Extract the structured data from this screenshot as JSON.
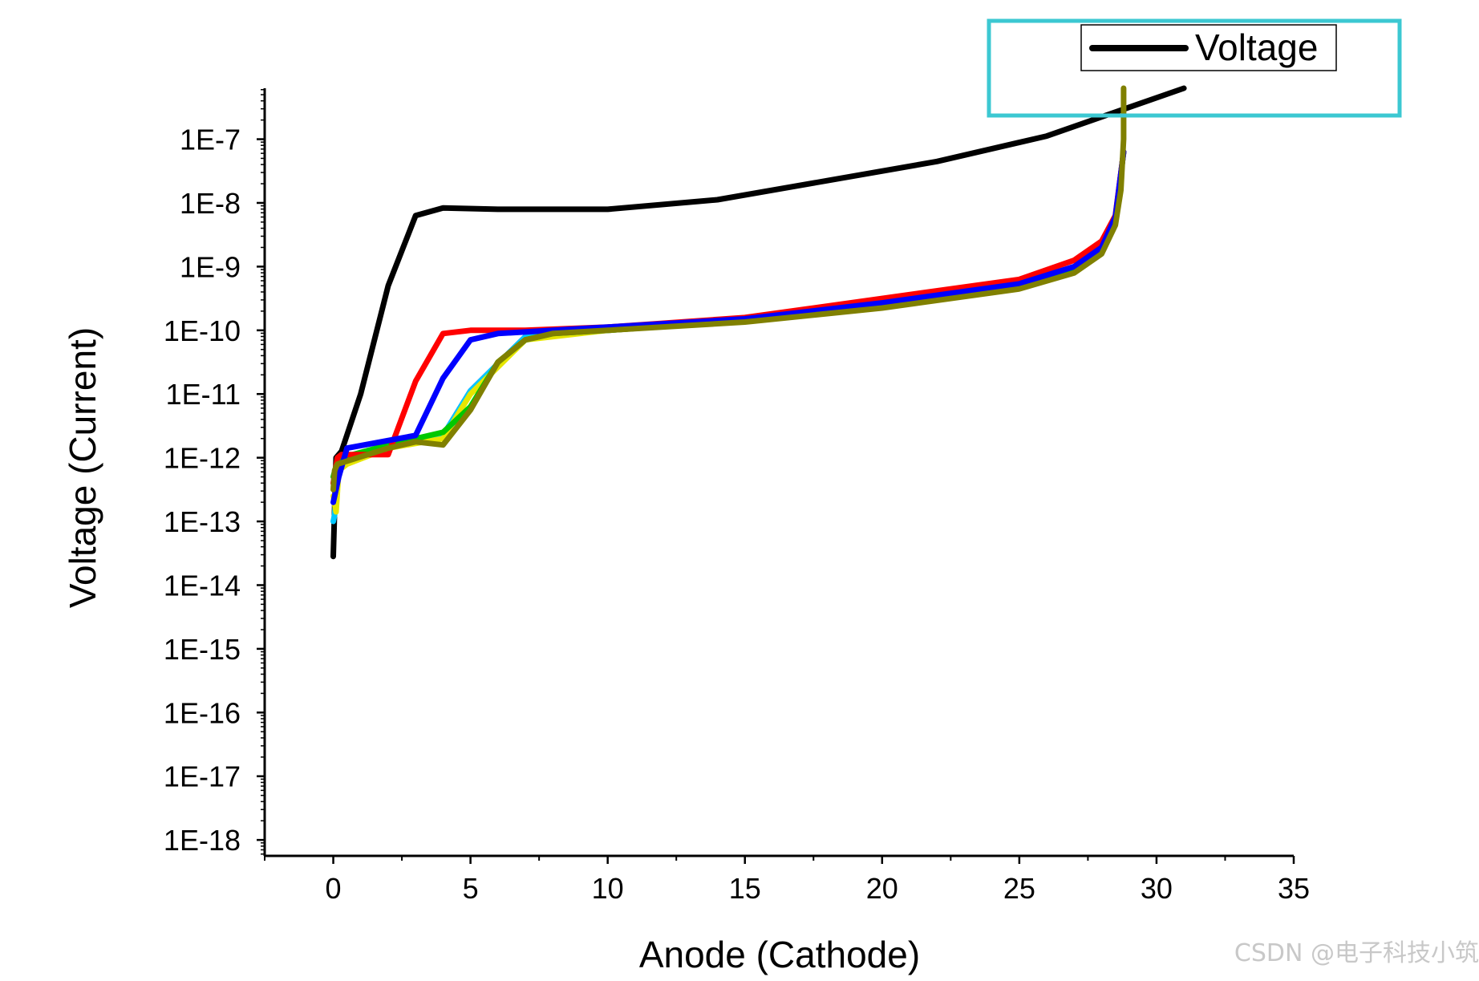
{
  "chart_data": {
    "type": "line",
    "title": "",
    "xlabel": "Anode (Cathode)",
    "ylabel": "Voltage (Current)",
    "xlim": [
      -2.5,
      35
    ],
    "ylim_log10": [
      -18.25,
      -6.2
    ],
    "yscale": "log",
    "xticks": [
      0,
      5,
      10,
      15,
      20,
      25,
      30,
      35
    ],
    "xtick_labels": [
      "0",
      "5",
      "10",
      "15",
      "20",
      "25",
      "30",
      "35"
    ],
    "yticks_log10": [
      -18,
      -17,
      -16,
      -15,
      -14,
      -13,
      -12,
      -11,
      -10,
      -9,
      -8,
      -7
    ],
    "ytick_labels": [
      "1E-18",
      "1E-17",
      "1E-16",
      "1E-15",
      "1E-14",
      "1E-13",
      "1E-12",
      "1E-11",
      "1E-10",
      "1E-9",
      "1E-8",
      "1E-7"
    ],
    "grid": false,
    "legend": {
      "position": "top-right",
      "entries": [
        "Voltage"
      ],
      "highlight_color": "#3cc8d2"
    },
    "series": [
      {
        "name": "Voltage",
        "color": "#000000",
        "x": [
          0,
          0.1,
          0.3,
          1,
          2,
          3,
          4,
          6,
          10,
          14,
          18,
          22,
          26,
          29,
          31
        ],
        "y_log10": [
          -13.55,
          -12.0,
          -11.9,
          -11.0,
          -9.3,
          -8.2,
          -8.08,
          -8.1,
          -8.1,
          -7.95,
          -7.65,
          -7.35,
          -6.95,
          -6.5,
          -6.2
        ]
      },
      {
        "name": "",
        "color": "#ff00ff",
        "x": [
          0,
          0.15,
          0.4,
          2,
          4,
          5,
          7,
          10,
          15,
          20,
          25,
          27,
          28,
          28.5,
          28.8
        ],
        "y_log10": [
          -12.4,
          -12.1,
          -12.05,
          -11.8,
          -11.65,
          -10.95,
          -10.1,
          -10.0,
          -9.85,
          -9.6,
          -9.3,
          -9.05,
          -8.75,
          -8.25,
          -7.2
        ]
      },
      {
        "name": "",
        "color": "#00c8ff",
        "x": [
          0,
          0.05,
          0.15,
          0.4,
          2,
          4,
          5,
          7,
          10,
          15,
          20,
          25,
          27,
          28,
          28.5,
          28.8
        ],
        "y_log10": [
          -13.0,
          -12.9,
          -12.3,
          -12.05,
          -11.8,
          -11.65,
          -10.95,
          -10.1,
          -10.0,
          -9.85,
          -9.6,
          -9.3,
          -9.05,
          -8.75,
          -8.25,
          -7.2
        ]
      },
      {
        "name": "",
        "color": "#e6e600",
        "x": [
          0,
          0.1,
          0.2,
          0.5,
          2,
          4,
          5,
          7,
          10,
          15,
          20,
          25,
          27,
          28,
          28.5,
          28.8
        ],
        "y_log10": [
          -12.6,
          -12.85,
          -12.2,
          -12.1,
          -11.85,
          -11.7,
          -11.0,
          -10.15,
          -10.0,
          -9.85,
          -9.6,
          -9.3,
          -9.05,
          -8.75,
          -8.25,
          -7.2
        ]
      },
      {
        "name": "",
        "color": "#00c800",
        "x": [
          0,
          0.15,
          0.3,
          2,
          4,
          5,
          6,
          7,
          8,
          10,
          15,
          20,
          25,
          27,
          28,
          28.5,
          28.8
        ],
        "y_log10": [
          -12.3,
          -12.05,
          -12.0,
          -11.8,
          -11.6,
          -11.2,
          -10.5,
          -10.15,
          -10.05,
          -10.0,
          -9.85,
          -9.6,
          -9.3,
          -9.05,
          -8.75,
          -8.25,
          -7.2
        ]
      },
      {
        "name": "",
        "color": "#ff0000",
        "x": [
          0,
          0.15,
          0.3,
          2,
          3,
          4,
          5,
          7,
          10,
          15,
          20,
          25,
          27,
          28,
          28.5,
          28.8
        ],
        "y_log10": [
          -12.4,
          -12.0,
          -11.95,
          -11.95,
          -10.8,
          -10.05,
          -10.0,
          -10.0,
          -9.95,
          -9.8,
          -9.5,
          -9.2,
          -8.9,
          -8.6,
          -8.2,
          -7.2
        ]
      },
      {
        "name": "",
        "color": "#0000ff",
        "x": [
          0,
          0.2,
          0.5,
          3,
          4,
          5,
          6,
          8,
          10,
          15,
          20,
          25,
          27,
          28,
          28.5,
          28.8
        ],
        "y_log10": [
          -12.7,
          -12.3,
          -11.85,
          -11.65,
          -10.75,
          -10.15,
          -10.05,
          -10.0,
          -9.95,
          -9.82,
          -9.57,
          -9.27,
          -9.0,
          -8.7,
          -8.22,
          -7.2
        ]
      },
      {
        "name": "",
        "color": "#808000",
        "x": [
          0,
          0.05,
          0.15,
          2,
          3,
          4,
          5,
          6,
          7,
          8,
          10,
          15,
          20,
          25,
          27,
          28,
          28.5,
          28.7,
          28.8,
          28.8
        ],
        "y_log10": [
          -12.5,
          -12.2,
          -12.1,
          -11.85,
          -11.75,
          -11.8,
          -11.25,
          -10.5,
          -10.15,
          -10.05,
          -10.0,
          -9.87,
          -9.65,
          -9.35,
          -9.1,
          -8.8,
          -8.35,
          -7.8,
          -7.0,
          -6.2
        ]
      }
    ]
  },
  "watermark": "CSDN @电子科技小筑"
}
